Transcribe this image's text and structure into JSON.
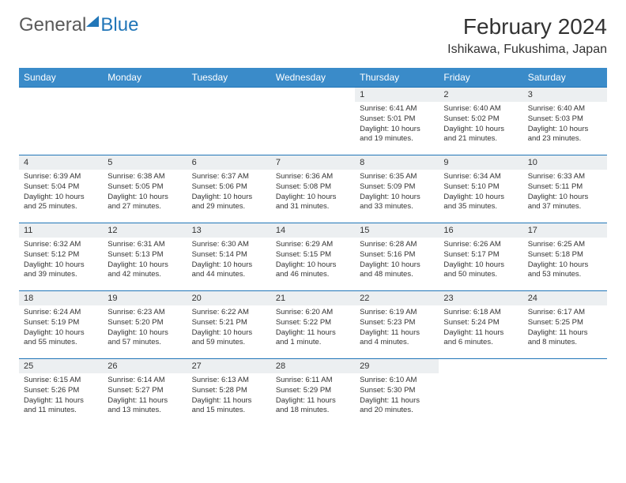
{
  "logo": {
    "part1": "General",
    "part2": "Blue"
  },
  "title": "February 2024",
  "location": "Ishikawa, Fukushima, Japan",
  "colors": {
    "header_bg": "#3a8bc9",
    "border": "#2176b8",
    "daynum_bg": "#eceff1",
    "text": "#333333",
    "logo_gray": "#5a5a5a",
    "logo_blue": "#2176b8"
  },
  "day_names": [
    "Sunday",
    "Monday",
    "Tuesday",
    "Wednesday",
    "Thursday",
    "Friday",
    "Saturday"
  ],
  "leading_blanks": 4,
  "days": [
    {
      "n": "1",
      "sunrise": "Sunrise: 6:41 AM",
      "sunset": "Sunset: 5:01 PM",
      "daylight": "Daylight: 10 hours and 19 minutes."
    },
    {
      "n": "2",
      "sunrise": "Sunrise: 6:40 AM",
      "sunset": "Sunset: 5:02 PM",
      "daylight": "Daylight: 10 hours and 21 minutes."
    },
    {
      "n": "3",
      "sunrise": "Sunrise: 6:40 AM",
      "sunset": "Sunset: 5:03 PM",
      "daylight": "Daylight: 10 hours and 23 minutes."
    },
    {
      "n": "4",
      "sunrise": "Sunrise: 6:39 AM",
      "sunset": "Sunset: 5:04 PM",
      "daylight": "Daylight: 10 hours and 25 minutes."
    },
    {
      "n": "5",
      "sunrise": "Sunrise: 6:38 AM",
      "sunset": "Sunset: 5:05 PM",
      "daylight": "Daylight: 10 hours and 27 minutes."
    },
    {
      "n": "6",
      "sunrise": "Sunrise: 6:37 AM",
      "sunset": "Sunset: 5:06 PM",
      "daylight": "Daylight: 10 hours and 29 minutes."
    },
    {
      "n": "7",
      "sunrise": "Sunrise: 6:36 AM",
      "sunset": "Sunset: 5:08 PM",
      "daylight": "Daylight: 10 hours and 31 minutes."
    },
    {
      "n": "8",
      "sunrise": "Sunrise: 6:35 AM",
      "sunset": "Sunset: 5:09 PM",
      "daylight": "Daylight: 10 hours and 33 minutes."
    },
    {
      "n": "9",
      "sunrise": "Sunrise: 6:34 AM",
      "sunset": "Sunset: 5:10 PM",
      "daylight": "Daylight: 10 hours and 35 minutes."
    },
    {
      "n": "10",
      "sunrise": "Sunrise: 6:33 AM",
      "sunset": "Sunset: 5:11 PM",
      "daylight": "Daylight: 10 hours and 37 minutes."
    },
    {
      "n": "11",
      "sunrise": "Sunrise: 6:32 AM",
      "sunset": "Sunset: 5:12 PM",
      "daylight": "Daylight: 10 hours and 39 minutes."
    },
    {
      "n": "12",
      "sunrise": "Sunrise: 6:31 AM",
      "sunset": "Sunset: 5:13 PM",
      "daylight": "Daylight: 10 hours and 42 minutes."
    },
    {
      "n": "13",
      "sunrise": "Sunrise: 6:30 AM",
      "sunset": "Sunset: 5:14 PM",
      "daylight": "Daylight: 10 hours and 44 minutes."
    },
    {
      "n": "14",
      "sunrise": "Sunrise: 6:29 AM",
      "sunset": "Sunset: 5:15 PM",
      "daylight": "Daylight: 10 hours and 46 minutes."
    },
    {
      "n": "15",
      "sunrise": "Sunrise: 6:28 AM",
      "sunset": "Sunset: 5:16 PM",
      "daylight": "Daylight: 10 hours and 48 minutes."
    },
    {
      "n": "16",
      "sunrise": "Sunrise: 6:26 AM",
      "sunset": "Sunset: 5:17 PM",
      "daylight": "Daylight: 10 hours and 50 minutes."
    },
    {
      "n": "17",
      "sunrise": "Sunrise: 6:25 AM",
      "sunset": "Sunset: 5:18 PM",
      "daylight": "Daylight: 10 hours and 53 minutes."
    },
    {
      "n": "18",
      "sunrise": "Sunrise: 6:24 AM",
      "sunset": "Sunset: 5:19 PM",
      "daylight": "Daylight: 10 hours and 55 minutes."
    },
    {
      "n": "19",
      "sunrise": "Sunrise: 6:23 AM",
      "sunset": "Sunset: 5:20 PM",
      "daylight": "Daylight: 10 hours and 57 minutes."
    },
    {
      "n": "20",
      "sunrise": "Sunrise: 6:22 AM",
      "sunset": "Sunset: 5:21 PM",
      "daylight": "Daylight: 10 hours and 59 minutes."
    },
    {
      "n": "21",
      "sunrise": "Sunrise: 6:20 AM",
      "sunset": "Sunset: 5:22 PM",
      "daylight": "Daylight: 11 hours and 1 minute."
    },
    {
      "n": "22",
      "sunrise": "Sunrise: 6:19 AM",
      "sunset": "Sunset: 5:23 PM",
      "daylight": "Daylight: 11 hours and 4 minutes."
    },
    {
      "n": "23",
      "sunrise": "Sunrise: 6:18 AM",
      "sunset": "Sunset: 5:24 PM",
      "daylight": "Daylight: 11 hours and 6 minutes."
    },
    {
      "n": "24",
      "sunrise": "Sunrise: 6:17 AM",
      "sunset": "Sunset: 5:25 PM",
      "daylight": "Daylight: 11 hours and 8 minutes."
    },
    {
      "n": "25",
      "sunrise": "Sunrise: 6:15 AM",
      "sunset": "Sunset: 5:26 PM",
      "daylight": "Daylight: 11 hours and 11 minutes."
    },
    {
      "n": "26",
      "sunrise": "Sunrise: 6:14 AM",
      "sunset": "Sunset: 5:27 PM",
      "daylight": "Daylight: 11 hours and 13 minutes."
    },
    {
      "n": "27",
      "sunrise": "Sunrise: 6:13 AM",
      "sunset": "Sunset: 5:28 PM",
      "daylight": "Daylight: 11 hours and 15 minutes."
    },
    {
      "n": "28",
      "sunrise": "Sunrise: 6:11 AM",
      "sunset": "Sunset: 5:29 PM",
      "daylight": "Daylight: 11 hours and 18 minutes."
    },
    {
      "n": "29",
      "sunrise": "Sunrise: 6:10 AM",
      "sunset": "Sunset: 5:30 PM",
      "daylight": "Daylight: 11 hours and 20 minutes."
    }
  ]
}
